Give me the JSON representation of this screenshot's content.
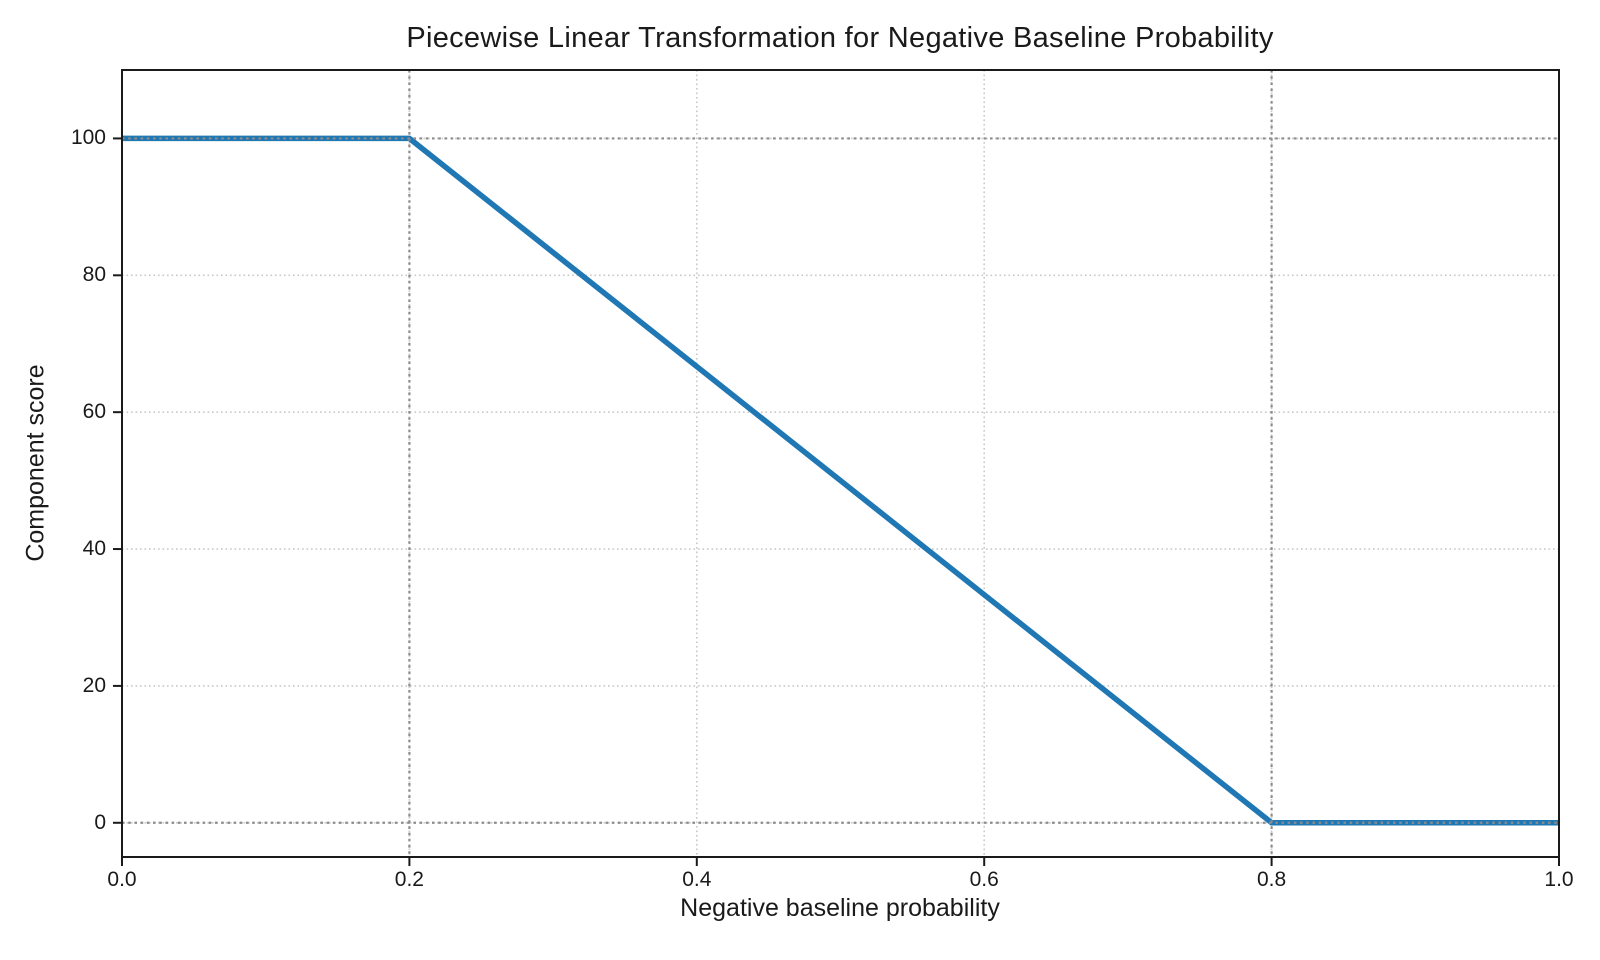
{
  "chart_data": {
    "type": "line",
    "title": "Piecewise Linear Transformation for Negative Baseline Probability",
    "xlabel": "Negative baseline probability",
    "ylabel": "Component score",
    "series": [
      {
        "name": "component-score-transform",
        "color": "#1f77b4",
        "line_width": 5.5,
        "points": [
          [
            0.0,
            100
          ],
          [
            0.2,
            100
          ],
          [
            0.8,
            0
          ],
          [
            1.0,
            0
          ]
        ]
      }
    ],
    "xlim": [
      0.0,
      1.0
    ],
    "ylim": [
      -5,
      110
    ],
    "x_tick_values": [
      0.0,
      0.2,
      0.4,
      0.6,
      0.8,
      1.0
    ],
    "x_tick_labels": [
      "0.0",
      "0.2",
      "0.4",
      "0.6",
      "0.8",
      "1.0"
    ],
    "y_tick_values": [
      0,
      20,
      40,
      60,
      80,
      100
    ],
    "y_tick_labels": [
      "0",
      "20",
      "40",
      "60",
      "80",
      "100"
    ],
    "grid": {
      "on": true,
      "style": "dotted",
      "color": "#c9c9c9"
    },
    "reference_lines": {
      "style": "dotted",
      "color": "#8c8c8c",
      "vertical_x": [
        0.2,
        0.8
      ],
      "horizontal_y": [
        0,
        100
      ]
    },
    "legend": "none",
    "spine_color": "#1a1a1a",
    "text_color": "#1a1a1a"
  }
}
